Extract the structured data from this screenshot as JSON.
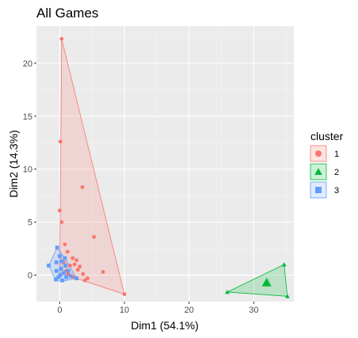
{
  "chart_data": {
    "type": "scatter",
    "title": "All Games",
    "xlabel": "Dim1 (54.1%)",
    "ylabel": "Dim2 (14.3%)",
    "xlim": [
      -3.6,
      36.2
    ],
    "ylim": [
      -2.5,
      23.5
    ],
    "xticks": [
      0,
      10,
      20,
      30
    ],
    "yticks": [
      0,
      5,
      10,
      15,
      20
    ],
    "grid": true,
    "legend": {
      "title": "cluster",
      "placement": "right",
      "entries": [
        {
          "label": "1",
          "color": "#F8766D",
          "shape": "circle"
        },
        {
          "label": "2",
          "color": "#00BA38",
          "shape": "triangle"
        },
        {
          "label": "3",
          "color": "#619CFF",
          "shape": "square"
        }
      ]
    },
    "series": [
      {
        "name": "1",
        "color": "#F8766D",
        "shape": "circle",
        "hull": [
          [
            0.3,
            22.3
          ],
          [
            10.0,
            -1.8
          ],
          [
            0.0,
            0.2
          ]
        ],
        "points": [
          [
            0.3,
            22.3
          ],
          [
            0.1,
            12.6
          ],
          [
            3.5,
            8.3
          ],
          [
            0.0,
            6.1
          ],
          [
            0.3,
            5.0
          ],
          [
            5.3,
            3.6
          ],
          [
            0.8,
            2.9
          ],
          [
            1.2,
            2.2
          ],
          [
            2.0,
            1.6
          ],
          [
            2.6,
            1.4
          ],
          [
            2.3,
            1.0
          ],
          [
            1.6,
            0.9
          ],
          [
            3.1,
            0.8
          ],
          [
            2.8,
            0.5
          ],
          [
            6.7,
            0.3
          ],
          [
            1.0,
            0.4
          ],
          [
            3.6,
            0.1
          ],
          [
            2.1,
            -0.2
          ],
          [
            4.3,
            -0.3
          ],
          [
            10.0,
            -1.8
          ],
          [
            3.9,
            -0.5
          ],
          [
            2.6,
            -0.3
          ],
          [
            1.3,
            0.1
          ],
          [
            0.6,
            1.2
          ]
        ]
      },
      {
        "name": "2",
        "color": "#00BA38",
        "shape": "triangle",
        "hull": [
          [
            25.9,
            -1.6
          ],
          [
            34.7,
            1.0
          ],
          [
            35.2,
            -2.0
          ]
        ],
        "points": [
          [
            25.9,
            -1.6
          ],
          [
            34.7,
            1.0
          ],
          [
            35.2,
            -2.0
          ]
        ],
        "center": [
          32.0,
          -0.7
        ]
      },
      {
        "name": "3",
        "color": "#619CFF",
        "shape": "square",
        "hull": [
          [
            -1.7,
            0.9
          ],
          [
            -0.4,
            2.6
          ],
          [
            0.8,
            1.6
          ],
          [
            2.6,
            -0.3
          ],
          [
            0.2,
            -0.6
          ],
          [
            -0.6,
            -0.5
          ]
        ],
        "points": [
          [
            -1.7,
            0.9
          ],
          [
            -0.4,
            2.6
          ],
          [
            0.8,
            1.6
          ],
          [
            0.0,
            1.8
          ],
          [
            -0.5,
            1.2
          ],
          [
            0.3,
            1.3
          ],
          [
            0.9,
            0.9
          ],
          [
            0.2,
            0.6
          ],
          [
            -0.5,
            0.4
          ],
          [
            0.6,
            0.2
          ],
          [
            1.3,
            0.4
          ],
          [
            1.7,
            -0.1
          ],
          [
            2.6,
            -0.3
          ],
          [
            -0.6,
            -0.4
          ],
          [
            0.4,
            -0.5
          ],
          [
            1.0,
            -0.2
          ],
          [
            0.1,
            0.0
          ],
          [
            -0.2,
            -0.2
          ]
        ]
      }
    ]
  }
}
